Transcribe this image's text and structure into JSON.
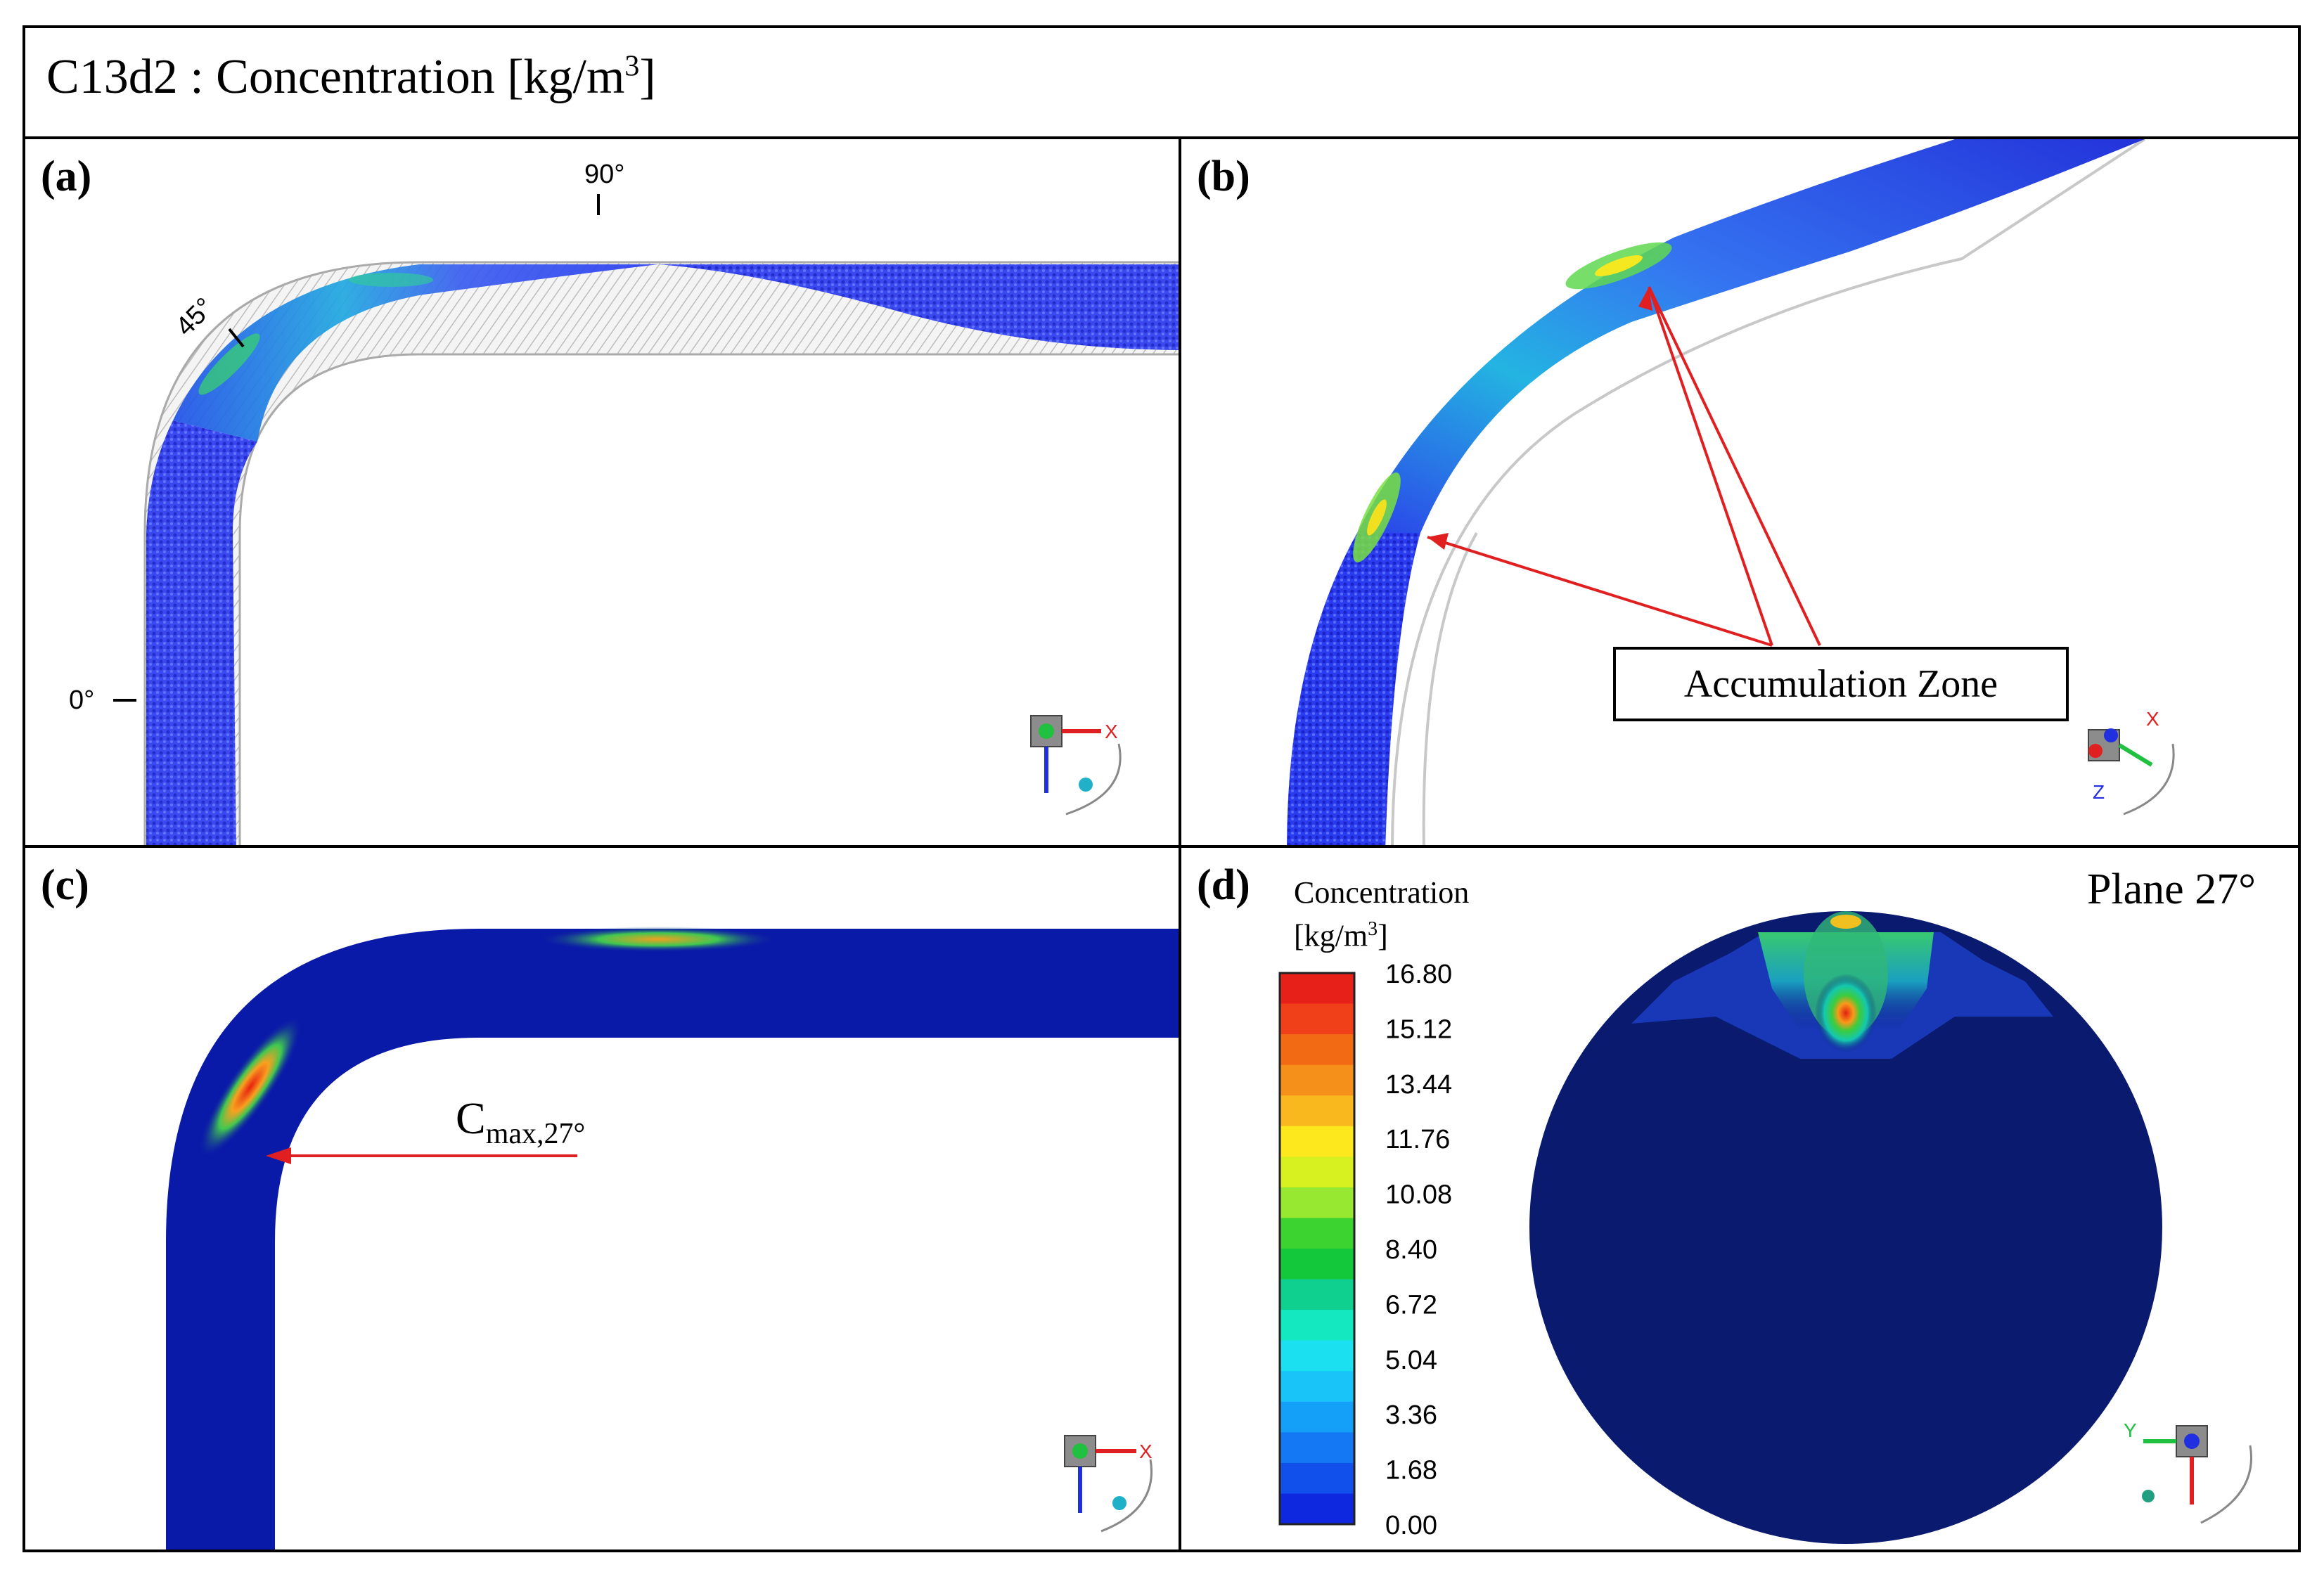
{
  "figure": {
    "title_prefix": "C13d2 : Concentration  [kg/m",
    "title_sup": "3",
    "title_suffix": "]"
  },
  "panels": {
    "a": {
      "label": "(a)",
      "angle_90": "90°",
      "angle_45": "45°",
      "angle_0": "0°"
    },
    "b": {
      "label": "(b)",
      "annotation": "Accumulation Zone"
    },
    "c": {
      "label": "(c)",
      "annotation_main": "C",
      "annotation_sub": "max,27°"
    },
    "d": {
      "label": "(d)",
      "plane_title": "Plane 27°",
      "colorbar_title_line1": "Concentration",
      "colorbar_title_line2": "[kg/m",
      "colorbar_title_sup": "3",
      "colorbar_title_end": "]"
    }
  },
  "axes_labels": {
    "x": "X",
    "y": "Y",
    "z": "Z"
  },
  "colors": {
    "particle": "#2a3cf0",
    "field_low": "#0a1aa8",
    "field_deep": "#0a1a6e",
    "arrow": "#e02020"
  },
  "chart_data": {
    "type": "heatmap",
    "title": "Concentration [kg/m3]",
    "colorbar": {
      "min": 0.0,
      "max": 16.8,
      "tick_labels": [
        "16.80",
        "15.12",
        "13.44",
        "11.76",
        "10.08",
        "8.40",
        "6.72",
        "5.04",
        "3.36",
        "1.68",
        "0.00"
      ],
      "tick_values": [
        16.8,
        15.12,
        13.44,
        11.76,
        10.08,
        8.4,
        6.72,
        5.04,
        3.36,
        1.68,
        0.0
      ],
      "band_colors": [
        "#e8201a",
        "#f0401a",
        "#f26a14",
        "#f5901a",
        "#f8b81e",
        "#fce81c",
        "#d6f020",
        "#96e830",
        "#3cd230",
        "#14c83c",
        "#10d090",
        "#14e8c0",
        "#1ae0f0",
        "#18c4f8",
        "#14a0f8",
        "#1478f4",
        "#1250ec",
        "#0e28e0"
      ]
    }
  }
}
